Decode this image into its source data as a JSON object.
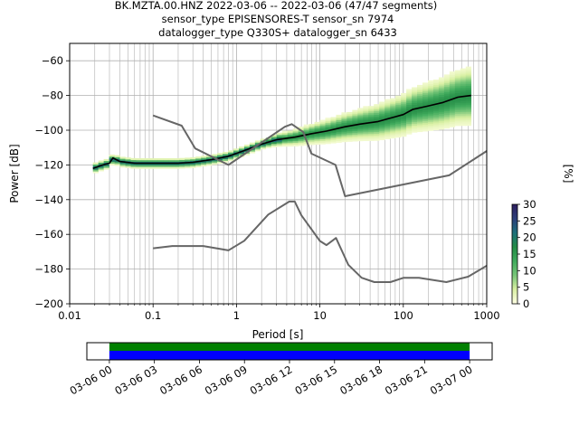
{
  "header": {
    "line1": "BK.MZTA.00.HNZ   2022-03-06 -- 2022-03-06  (47/47 segments)",
    "line2": "sensor_type EPISENSORES-T sensor_sn 7974",
    "line3": "datalogger_type Q330S+ datalogger_sn 6433"
  },
  "chart_data": [
    {
      "type": "heatmap",
      "title": "",
      "xlabel": "Period [s]",
      "ylabel": "Power [dB]",
      "xscale": "log",
      "xlim": [
        0.01,
        1000
      ],
      "ylim": [
        -200,
        -50
      ],
      "x_ticks": [
        0.01,
        0.1,
        1,
        10,
        100,
        1000
      ],
      "x_tick_labels": [
        "0.01",
        "0.1",
        "1",
        "10",
        "100",
        "1000"
      ],
      "y_ticks": [
        -200,
        -180,
        -160,
        -140,
        -120,
        -100,
        -80,
        -60
      ],
      "y_tick_labels": [
        "−200",
        "−180",
        "−160",
        "−140",
        "−120",
        "−100",
        "−80",
        "−60"
      ],
      "grid": true,
      "colorbar": {
        "label": "[%]",
        "range": [
          0,
          30
        ],
        "ticks": [
          0,
          5,
          10,
          15,
          20,
          25,
          30
        ],
        "tick_labels": [
          "0",
          "5",
          "10",
          "15",
          "20",
          "25",
          "30"
        ],
        "colors": [
          "#ffffe5",
          "#d9f0a3",
          "#78c679",
          "#41ab5d",
          "#238b45",
          "#1d6f7a",
          "#2c3e7a",
          "#2d1e5e"
        ]
      },
      "series": [
        {
          "role": "mode",
          "color": "#000000",
          "x": [
            0.019,
            0.025,
            0.03,
            0.033,
            0.04,
            0.06,
            0.1,
            0.2,
            0.3,
            0.5,
            0.8,
            1.2,
            2,
            3,
            5,
            8,
            12,
            20,
            30,
            50,
            70,
            100,
            130,
            200,
            300,
            450,
            650
          ],
          "y": [
            -122,
            -120,
            -119,
            -116,
            -118,
            -119,
            -119,
            -119,
            -118.5,
            -117,
            -115,
            -112,
            -108,
            -105.5,
            -104,
            -102,
            -100.5,
            -98,
            -96.5,
            -95,
            -93,
            -91,
            -88,
            -86,
            -84,
            -81,
            -80
          ]
        },
        {
          "role": "noise-model-high",
          "color": "#666666",
          "x": [
            0.1,
            0.22,
            0.32,
            0.8,
            3.8,
            4.6,
            6.3,
            7.9,
            15.4,
            20,
            354.8,
            1000
          ],
          "y": [
            -91.5,
            -97.4,
            -110.5,
            -120,
            -98,
            -96.5,
            -101,
            -113.5,
            -120,
            -138,
            -126,
            -112
          ]
        },
        {
          "role": "noise-model-low",
          "color": "#666666",
          "x": [
            0.1,
            0.17,
            0.4,
            0.8,
            1.24,
            2.4,
            4.3,
            5,
            6,
            10,
            12,
            15.6,
            21.9,
            31.6,
            45,
            70,
            101,
            154,
            328,
            600,
            1000
          ],
          "y": [
            -168,
            -166.7,
            -166.7,
            -169.2,
            -163.7,
            -148.6,
            -141.1,
            -141.1,
            -149,
            -163.8,
            -166.2,
            -162.1,
            -177.5,
            -185,
            -187.5,
            -187.5,
            -185,
            -185,
            -187.5,
            -184.4,
            -178
          ]
        }
      ]
    },
    {
      "type": "timeline",
      "title": "",
      "xlabel": "",
      "ylabel": "",
      "x_tick_labels": [
        "03-06 00",
        "03-06 03",
        "03-06 06",
        "03-06 09",
        "03-06 12",
        "03-06 15",
        "03-06 18",
        "03-06 21",
        "03-07 00"
      ],
      "range": [
        "03-05 22:30",
        "03-07 01:30"
      ],
      "bars": [
        {
          "role": "data-coverage",
          "color": "#008000",
          "start": "03-06 00",
          "end": "03-07 00"
        },
        {
          "role": "psd-coverage",
          "color": "#0000ff",
          "start": "03-06 00",
          "end": "03-07 00"
        }
      ]
    }
  ]
}
